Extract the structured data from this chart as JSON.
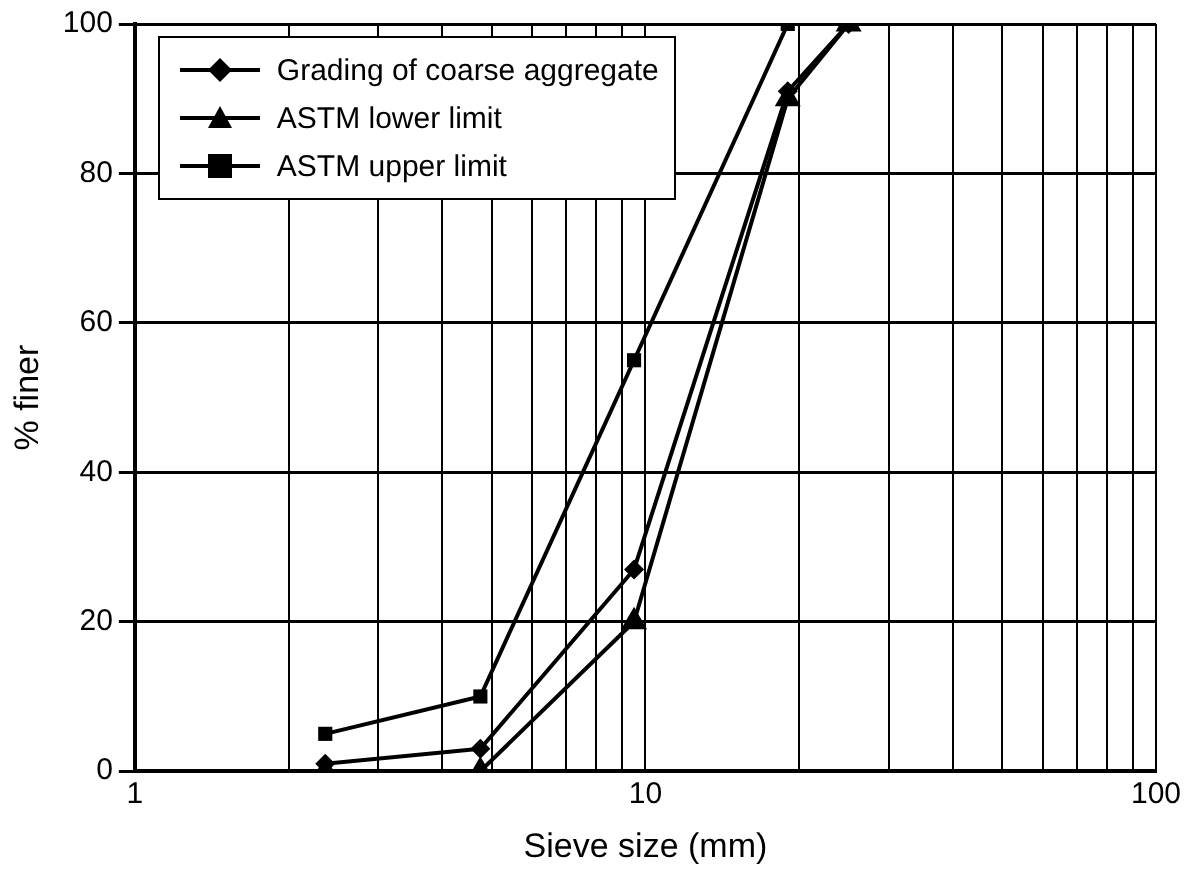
{
  "chart_data": {
    "type": "line",
    "xlabel": "Sieve size (mm)",
    "ylabel": "% finer",
    "log": "x",
    "x": [
      2.36,
      4.75,
      9.5,
      19,
      25
    ],
    "series": [
      {
        "name": "Grading of coarse aggregate",
        "color": "#000000",
        "marker": "diamond",
        "values": [
          1,
          3,
          27,
          91,
          100
        ]
      },
      {
        "name": "ASTM lower limit",
        "color": "#000000",
        "marker": "triangle",
        "values": [
          0,
          0,
          20,
          90,
          100
        ]
      },
      {
        "name": "ASTM upper limit",
        "color": "#000000",
        "marker": "square",
        "values": [
          5,
          10,
          55,
          100,
          100
        ]
      }
    ],
    "xlim": [
      1,
      100
    ],
    "xticks": [
      1,
      {
        "value": 2,
        "label": null
      },
      {
        "value": 3,
        "label": null
      },
      {
        "value": 4,
        "label": null
      },
      {
        "value": 5,
        "label": null
      },
      {
        "value": 6,
        "label": null
      },
      {
        "value": 7,
        "label": null
      },
      {
        "value": 8,
        "label": null
      },
      {
        "value": 9,
        "label": null
      },
      10,
      {
        "value": 20,
        "label": null
      },
      {
        "value": 30,
        "label": null
      },
      {
        "value": 40,
        "label": null
      },
      {
        "value": 50,
        "label": null
      },
      {
        "value": 60,
        "label": null
      },
      {
        "value": 70,
        "label": null
      },
      {
        "value": 80,
        "label": null
      },
      {
        "value": 90,
        "label": null
      },
      100
    ],
    "ylim": [
      0,
      100
    ],
    "yticks": [
      0,
      20,
      40,
      60,
      80,
      100
    ],
    "grid": true,
    "legend": "top left",
    "line_style": "solid"
  }
}
